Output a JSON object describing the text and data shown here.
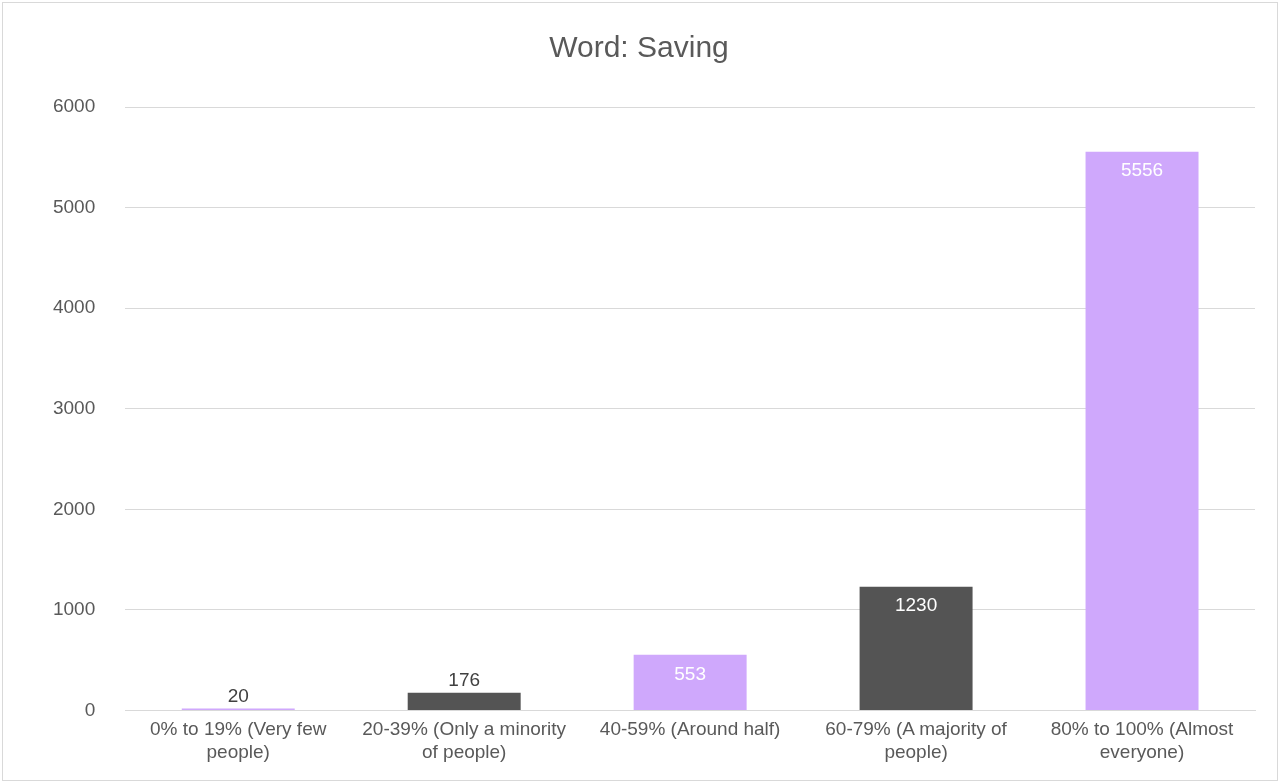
{
  "chart_data": {
    "type": "bar",
    "title": "Word: Saving",
    "categories": [
      "0% to 19% (Very few people)",
      "20-39% (Only a minority of people)",
      "40-59% (Around half)",
      "60-79% (A majority of people)",
      "80% to 100% (Almost everyone)"
    ],
    "values": [
      20,
      176,
      553,
      1230,
      5556
    ],
    "colors": [
      "#cfa8fc",
      "#545454",
      "#cfa8fc",
      "#545454",
      "#cfa8fc"
    ],
    "ylim": [
      0,
      6000
    ],
    "yticks": [
      0,
      1000,
      2000,
      3000,
      4000,
      5000,
      6000
    ],
    "grid": "y",
    "data_labels": true
  }
}
